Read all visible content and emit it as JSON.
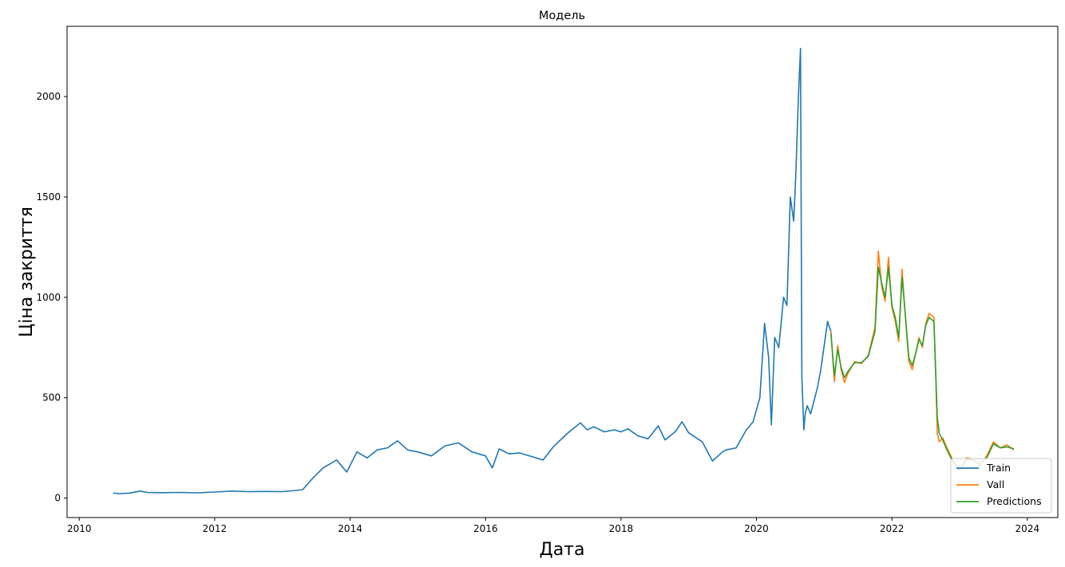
{
  "chart_data": {
    "type": "line",
    "title": "Модель",
    "xlabel": "Дата",
    "ylabel": "Ціна закриття",
    "xlim": [
      2009.82,
      2024.45
    ],
    "ylim": [
      -97,
      2350
    ],
    "x_ticks": [
      2010,
      2012,
      2014,
      2016,
      2018,
      2020,
      2022,
      2024
    ],
    "y_ticks": [
      0,
      500,
      1000,
      1500,
      2000
    ],
    "grid": false,
    "legend_position": "lower right",
    "series": [
      {
        "name": "Train",
        "color": "#1f77b4",
        "x": [
          2010.5,
          2010.6,
          2010.75,
          2010.9,
          2011.0,
          2011.2,
          2011.5,
          2011.75,
          2012.0,
          2012.25,
          2012.5,
          2012.75,
          2013.0,
          2013.2,
          2013.3,
          2013.45,
          2013.6,
          2013.8,
          2013.95,
          2014.1,
          2014.25,
          2014.4,
          2014.55,
          2014.7,
          2014.85,
          2015.0,
          2015.2,
          2015.4,
          2015.6,
          2015.8,
          2016.0,
          2016.1,
          2016.2,
          2016.35,
          2016.5,
          2016.7,
          2016.85,
          2017.0,
          2017.2,
          2017.4,
          2017.5,
          2017.6,
          2017.75,
          2017.9,
          2018.0,
          2018.1,
          2018.25,
          2018.4,
          2018.55,
          2018.65,
          2018.8,
          2018.9,
          2019.0,
          2019.2,
          2019.35,
          2019.5,
          2019.55,
          2019.7,
          2019.85,
          2019.95,
          2020.05,
          2020.12,
          2020.18,
          2020.22,
          2020.27,
          2020.33,
          2020.4,
          2020.45,
          2020.5,
          2020.55,
          2020.58,
          2020.62,
          2020.65,
          2020.67,
          2020.7,
          2020.72,
          2020.75,
          2020.8,
          2020.9,
          2020.95,
          2021.05,
          2021.1
        ],
        "y": [
          25,
          22,
          25,
          35,
          28,
          27,
          28,
          26,
          30,
          35,
          32,
          33,
          32,
          38,
          42,
          100,
          150,
          190,
          130,
          230,
          200,
          240,
          250,
          285,
          240,
          230,
          210,
          260,
          275,
          230,
          210,
          150,
          245,
          220,
          225,
          205,
          190,
          255,
          320,
          375,
          340,
          355,
          330,
          340,
          330,
          345,
          310,
          295,
          360,
          290,
          330,
          380,
          325,
          280,
          185,
          230,
          240,
          250,
          340,
          380,
          500,
          870,
          700,
          365,
          800,
          750,
          1000,
          960,
          1500,
          1380,
          1600,
          2000,
          2240,
          600,
          340,
          420,
          460,
          420,
          550,
          640,
          880,
          830
        ]
      },
      {
        "name": "Vall",
        "color": "#ff7f0e",
        "x": [
          2021.1,
          2021.15,
          2021.2,
          2021.25,
          2021.3,
          2021.35,
          2021.45,
          2021.55,
          2021.65,
          2021.75,
          2021.8,
          2021.85,
          2021.9,
          2021.95,
          2022.0,
          2022.05,
          2022.1,
          2022.15,
          2022.2,
          2022.25,
          2022.3,
          2022.35,
          2022.4,
          2022.45,
          2022.5,
          2022.55,
          2022.62,
          2022.65,
          2022.67,
          2022.7,
          2022.75,
          2022.8,
          2022.9,
          2023.0,
          2023.1,
          2023.2,
          2023.3,
          2023.4,
          2023.5,
          2023.6,
          2023.7,
          2023.8
        ],
        "y": [
          830,
          580,
          760,
          640,
          575,
          620,
          680,
          670,
          710,
          850,
          1230,
          1050,
          980,
          1200,
          950,
          880,
          780,
          1140,
          900,
          680,
          640,
          720,
          800,
          750,
          870,
          920,
          900,
          580,
          320,
          280,
          300,
          260,
          190,
          140,
          200,
          195,
          160,
          210,
          280,
          250,
          265,
          240
        ]
      },
      {
        "name": "Predictions",
        "color": "#2ca02c",
        "x": [
          2021.1,
          2021.15,
          2021.2,
          2021.25,
          2021.3,
          2021.35,
          2021.45,
          2021.55,
          2021.65,
          2021.75,
          2021.8,
          2021.85,
          2021.9,
          2021.95,
          2022.0,
          2022.05,
          2022.1,
          2022.15,
          2022.2,
          2022.25,
          2022.3,
          2022.35,
          2022.4,
          2022.45,
          2022.5,
          2022.55,
          2022.62,
          2022.65,
          2022.67,
          2022.7,
          2022.75,
          2022.8,
          2022.9,
          2023.0,
          2023.1,
          2023.2,
          2023.3,
          2023.4,
          2023.5,
          2023.6,
          2023.7,
          2023.8
        ],
        "y": [
          820,
          610,
          740,
          650,
          600,
          630,
          675,
          675,
          705,
          830,
          1150,
          1070,
          1000,
          1150,
          960,
          900,
          800,
          1100,
          910,
          700,
          660,
          720,
          790,
          760,
          860,
          900,
          880,
          600,
          400,
          320,
          290,
          250,
          180,
          140,
          190,
          190,
          170,
          200,
          270,
          250,
          255,
          245
        ]
      }
    ]
  }
}
